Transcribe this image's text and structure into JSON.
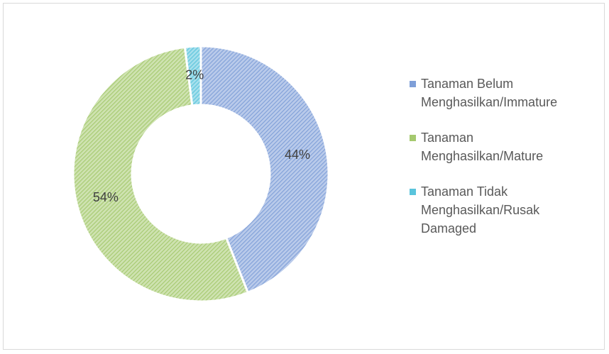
{
  "chart_data": {
    "type": "donut",
    "series": [
      {
        "name": "Tanaman Belum Menghasilkan/Immature",
        "color": "#7f9fd8",
        "values": [
          44
        ],
        "value_labels": [
          "44%"
        ]
      },
      {
        "name": "Tanaman Menghasilkan/Mature",
        "color": "#a5c96f",
        "values": [
          54
        ],
        "value_labels": [
          "54%"
        ]
      },
      {
        "name": "Tanaman Tidak Menghasilkan/Rusak Damaged",
        "color": "#5ac4dc",
        "values": [
          2
        ],
        "value_labels": [
          "2%"
        ]
      }
    ],
    "legend": "right"
  }
}
